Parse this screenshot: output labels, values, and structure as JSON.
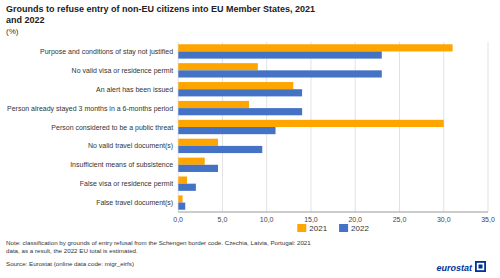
{
  "chart_data": {
    "type": "bar",
    "orientation": "horizontal",
    "title": "Grounds to refuse entry of non-EU citizens into EU Member States, 2021\nand 2022",
    "subtitle": "(%)",
    "categories": [
      "Purpose and conditions of stay not justified",
      "No valid visa or residence permit",
      "An alert has been issued",
      "Person already stayed 3 months in a 6-months period",
      "Person considered to be a public threat",
      "No valid travel document(s)",
      "Insufficient means of subsistence",
      "False visa or residence permit",
      "False travel document(s)"
    ],
    "series": [
      {
        "name": "2021",
        "color": "#FFA500",
        "values": [
          31.0,
          9.0,
          13.0,
          8.0,
          30.0,
          4.5,
          3.0,
          1.0,
          0.5
        ]
      },
      {
        "name": "2022",
        "color": "#4472C4",
        "values": [
          23.0,
          23.0,
          14.0,
          14.0,
          11.0,
          9.5,
          4.5,
          2.0,
          0.8
        ]
      }
    ],
    "xlim": [
      0,
      35
    ],
    "xticks": [
      {
        "value": 0,
        "label": "0,0"
      },
      {
        "value": 5,
        "label": "5,0"
      },
      {
        "value": 10,
        "label": "10,0"
      },
      {
        "value": 15,
        "label": "15,0"
      },
      {
        "value": 20,
        "label": "20,0"
      },
      {
        "value": 25,
        "label": "25,0"
      },
      {
        "value": 30,
        "label": "30,0"
      },
      {
        "value": 35,
        "label": "35,0"
      }
    ],
    "grid": true,
    "legend": "bottom",
    "annotations": [
      "Note: classification by grounds of entry refusal from the Schengen border code. Czechia, Latvia, Portugal: 2021\ndata, as a result, the 2022 EU total is estimated.",
      "Source: Eurostat (online data code: migr_eirfs)",
      "eurostat"
    ]
  }
}
